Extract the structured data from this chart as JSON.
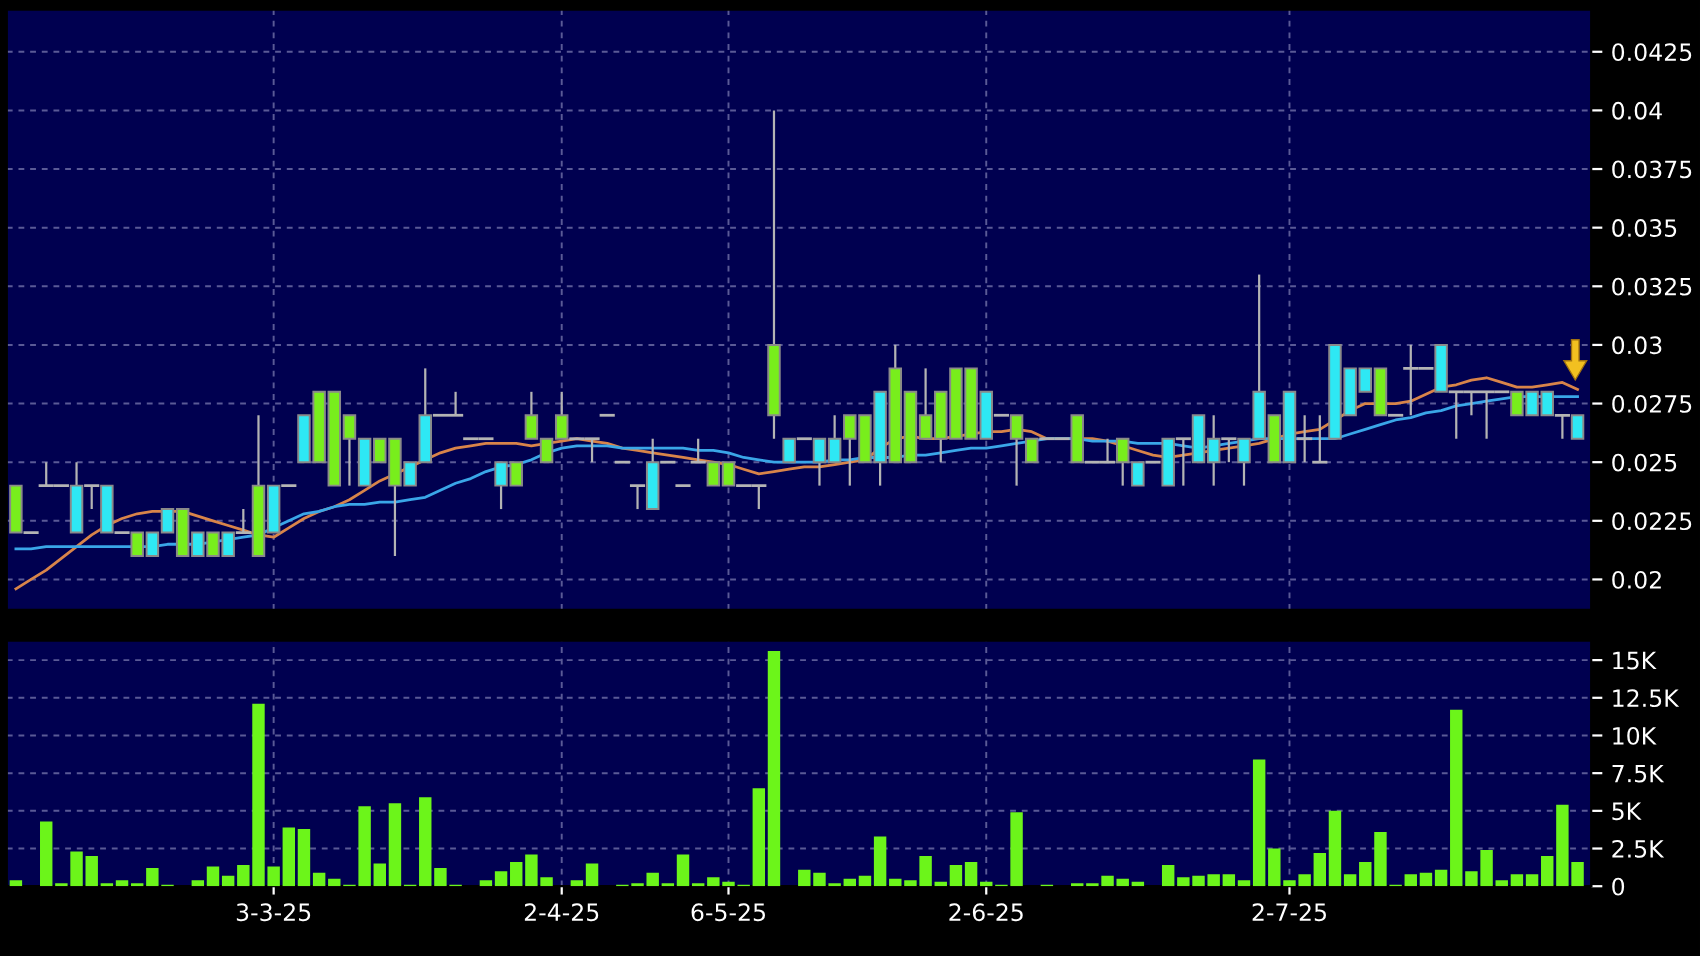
{
  "chart_data": [
    {
      "type": "candlestick",
      "ohlc": [
        [
          0.024,
          0.024,
          0.022,
          0.022
        ],
        [
          0.022,
          0.022,
          0.022,
          0.022
        ],
        [
          0.024,
          0.025,
          0.024,
          0.024
        ],
        [
          0.024,
          0.024,
          0.024,
          0.024
        ],
        [
          0.022,
          0.025,
          0.022,
          0.024
        ],
        [
          0.024,
          0.024,
          0.023,
          0.024
        ],
        [
          0.022,
          0.024,
          0.022,
          0.024
        ],
        [
          0.022,
          0.022,
          0.022,
          0.022
        ],
        [
          0.022,
          0.022,
          0.021,
          0.021
        ],
        [
          0.021,
          0.022,
          0.021,
          0.022
        ],
        [
          0.022,
          0.023,
          0.022,
          0.023
        ],
        [
          0.023,
          0.023,
          0.021,
          0.021
        ],
        [
          0.021,
          0.022,
          0.021,
          0.022
        ],
        [
          0.022,
          0.022,
          0.021,
          0.021
        ],
        [
          0.021,
          0.022,
          0.021,
          0.022
        ],
        [
          0.022,
          0.023,
          0.022,
          0.022
        ],
        [
          0.024,
          0.027,
          0.021,
          0.021
        ],
        [
          0.022,
          0.024,
          0.022,
          0.024
        ],
        [
          0.024,
          0.024,
          0.024,
          0.024
        ],
        [
          0.025,
          0.027,
          0.025,
          0.027
        ],
        [
          0.028,
          0.028,
          0.025,
          0.025
        ],
        [
          0.028,
          0.028,
          0.024,
          0.024
        ],
        [
          0.027,
          0.027,
          0.024,
          0.026
        ],
        [
          0.024,
          0.026,
          0.024,
          0.026
        ],
        [
          0.026,
          0.026,
          0.025,
          0.025
        ],
        [
          0.026,
          0.026,
          0.021,
          0.024
        ],
        [
          0.024,
          0.025,
          0.024,
          0.025
        ],
        [
          0.025,
          0.029,
          0.025,
          0.027
        ],
        [
          0.027,
          0.027,
          0.027,
          0.027
        ],
        [
          0.027,
          0.028,
          0.027,
          0.027
        ],
        [
          0.026,
          0.026,
          0.026,
          0.026
        ],
        [
          0.026,
          0.026,
          0.026,
          0.026
        ],
        [
          0.024,
          0.025,
          0.023,
          0.025
        ],
        [
          0.025,
          0.025,
          0.024,
          0.024
        ],
        [
          0.027,
          0.028,
          0.026,
          0.026
        ],
        [
          0.026,
          0.026,
          0.025,
          0.025
        ],
        [
          0.027,
          0.028,
          0.026,
          0.026
        ],
        [
          0.026,
          0.026,
          0.026,
          0.026
        ],
        [
          0.026,
          0.026,
          0.025,
          0.026
        ],
        [
          0.027,
          0.027,
          0.027,
          0.027
        ],
        [
          0.025,
          0.025,
          0.025,
          0.025
        ],
        [
          0.024,
          0.024,
          0.023,
          0.024
        ],
        [
          0.023,
          0.026,
          0.023,
          0.025
        ],
        [
          0.025,
          0.025,
          0.025,
          0.025
        ],
        [
          0.024,
          0.024,
          0.024,
          0.024
        ],
        [
          0.025,
          0.026,
          0.025,
          0.025
        ],
        [
          0.025,
          0.025,
          0.024,
          0.024
        ],
        [
          0.025,
          0.025,
          0.024,
          0.024
        ],
        [
          0.024,
          0.024,
          0.024,
          0.024
        ],
        [
          0.024,
          0.024,
          0.023,
          0.024
        ],
        [
          0.03,
          0.04,
          0.026,
          0.027
        ],
        [
          0.025,
          0.026,
          0.025,
          0.026
        ],
        [
          0.026,
          0.026,
          0.026,
          0.026
        ],
        [
          0.025,
          0.026,
          0.024,
          0.026
        ],
        [
          0.025,
          0.027,
          0.025,
          0.026
        ],
        [
          0.027,
          0.027,
          0.024,
          0.026
        ],
        [
          0.027,
          0.027,
          0.025,
          0.025
        ],
        [
          0.025,
          0.028,
          0.024,
          0.028
        ],
        [
          0.029,
          0.03,
          0.025,
          0.025
        ],
        [
          0.028,
          0.028,
          0.025,
          0.025
        ],
        [
          0.027,
          0.029,
          0.026,
          0.026
        ],
        [
          0.028,
          0.028,
          0.025,
          0.026
        ],
        [
          0.029,
          0.029,
          0.026,
          0.026
        ],
        [
          0.029,
          0.029,
          0.026,
          0.026
        ],
        [
          0.026,
          0.028,
          0.026,
          0.028
        ],
        [
          0.027,
          0.027,
          0.027,
          0.027
        ],
        [
          0.027,
          0.027,
          0.024,
          0.026
        ],
        [
          0.026,
          0.026,
          0.025,
          0.025
        ],
        [
          0.026,
          0.026,
          0.026,
          0.026
        ],
        [
          0.026,
          0.026,
          0.026,
          0.026
        ],
        [
          0.027,
          0.027,
          0.025,
          0.025
        ],
        [
          0.025,
          0.025,
          0.025,
          0.025
        ],
        [
          0.025,
          0.026,
          0.025,
          0.025
        ],
        [
          0.026,
          0.026,
          0.024,
          0.025
        ],
        [
          0.024,
          0.025,
          0.024,
          0.025
        ],
        [
          0.025,
          0.025,
          0.025,
          0.025
        ],
        [
          0.024,
          0.026,
          0.024,
          0.026
        ],
        [
          0.026,
          0.026,
          0.024,
          0.026
        ],
        [
          0.025,
          0.027,
          0.025,
          0.027
        ],
        [
          0.025,
          0.027,
          0.024,
          0.026
        ],
        [
          0.026,
          0.026,
          0.025,
          0.026
        ],
        [
          0.025,
          0.026,
          0.024,
          0.026
        ],
        [
          0.026,
          0.033,
          0.026,
          0.028
        ],
        [
          0.027,
          0.027,
          0.025,
          0.025
        ],
        [
          0.025,
          0.028,
          0.025,
          0.028
        ],
        [
          0.026,
          0.027,
          0.025,
          0.026
        ],
        [
          0.025,
          0.027,
          0.025,
          0.025
        ],
        [
          0.026,
          0.03,
          0.026,
          0.03
        ],
        [
          0.027,
          0.029,
          0.027,
          0.029
        ],
        [
          0.028,
          0.029,
          0.028,
          0.029
        ],
        [
          0.029,
          0.029,
          0.027,
          0.027
        ],
        [
          0.027,
          0.027,
          0.027,
          0.027
        ],
        [
          0.029,
          0.03,
          0.027,
          0.029
        ],
        [
          0.029,
          0.029,
          0.029,
          0.029
        ],
        [
          0.028,
          0.03,
          0.028,
          0.03
        ],
        [
          0.028,
          0.028,
          0.026,
          0.028
        ],
        [
          0.028,
          0.028,
          0.027,
          0.028
        ],
        [
          0.028,
          0.028,
          0.026,
          0.028
        ],
        [
          0.028,
          0.028,
          0.028,
          0.028
        ],
        [
          0.028,
          0.028,
          0.027,
          0.027
        ],
        [
          0.027,
          0.028,
          0.027,
          0.028
        ],
        [
          0.027,
          0.028,
          0.027,
          0.028
        ],
        [
          0.027,
          0.027,
          0.026,
          0.027
        ],
        [
          0.026,
          0.027,
          0.026,
          0.027
        ]
      ],
      "colors": [
        "#78ee1c",
        "#b4b4b4",
        "#b4b4b4",
        "#b4b4b4",
        "#2ee8f4",
        "#b4b4b4",
        "#2ee8f4",
        "#b4b4b4",
        "#78ee1c",
        "#2ee8f4",
        "#2ee8f4",
        "#78ee1c",
        "#2ee8f4",
        "#78ee1c",
        "#2ee8f4",
        "#b4b4b4",
        "#78ee1c",
        "#2ee8f4",
        "#b4b4b4",
        "#2ee8f4",
        "#78ee1c",
        "#78ee1c",
        "#78ee1c",
        "#2ee8f4",
        "#78ee1c",
        "#78ee1c",
        "#2ee8f4",
        "#2ee8f4",
        "#b4b4b4",
        "#b4b4b4",
        "#b4b4b4",
        "#b4b4b4",
        "#2ee8f4",
        "#78ee1c",
        "#78ee1c",
        "#78ee1c",
        "#78ee1c",
        "#b4b4b4",
        "#b4b4b4",
        "#b4b4b4",
        "#b4b4b4",
        "#b4b4b4",
        "#2ee8f4",
        "#b4b4b4",
        "#b4b4b4",
        "#b4b4b4",
        "#78ee1c",
        "#78ee1c",
        "#b4b4b4",
        "#b4b4b4",
        "#78ee1c",
        "#2ee8f4",
        "#b4b4b4",
        "#2ee8f4",
        "#2ee8f4",
        "#78ee1c",
        "#78ee1c",
        "#2ee8f4",
        "#78ee1c",
        "#78ee1c",
        "#78ee1c",
        "#78ee1c",
        "#78ee1c",
        "#78ee1c",
        "#2ee8f4",
        "#b4b4b4",
        "#78ee1c",
        "#78ee1c",
        "#b4b4b4",
        "#b4b4b4",
        "#78ee1c",
        "#b4b4b4",
        "#b4b4b4",
        "#78ee1c",
        "#2ee8f4",
        "#b4b4b4",
        "#2ee8f4",
        "#b4b4b4",
        "#2ee8f4",
        "#2ee8f4",
        "#b4b4b4",
        "#2ee8f4",
        "#2ee8f4",
        "#78ee1c",
        "#2ee8f4",
        "#b4b4b4",
        "#b4b4b4",
        "#2ee8f4",
        "#2ee8f4",
        "#2ee8f4",
        "#78ee1c",
        "#b4b4b4",
        "#b4b4b4",
        "#b4b4b4",
        "#2ee8f4",
        "#b4b4b4",
        "#b4b4b4",
        "#b4b4b4",
        "#b4b4b4",
        "#78ee1c",
        "#2ee8f4",
        "#2ee8f4",
        "#b4b4b4",
        "#2ee8f4"
      ],
      "series": [
        {
          "type": "line",
          "color": "#d8844a",
          "values": [
            0.0196,
            0.02,
            0.0204,
            0.0209,
            0.0214,
            0.0219,
            0.0223,
            0.0226,
            0.0228,
            0.0229,
            0.0229,
            0.0229,
            0.0227,
            0.0225,
            0.0223,
            0.0221,
            0.0219,
            0.0218,
            0.0222,
            0.0226,
            0.0229,
            0.0231,
            0.0234,
            0.0238,
            0.0242,
            0.0245,
            0.0248,
            0.0251,
            0.0254,
            0.0256,
            0.0257,
            0.0258,
            0.0258,
            0.0258,
            0.0257,
            0.0258,
            0.0259,
            0.026,
            0.0259,
            0.0258,
            0.0256,
            0.0255,
            0.0254,
            0.0253,
            0.0252,
            0.0251,
            0.025,
            0.0249,
            0.0247,
            0.0245,
            0.0246,
            0.0247,
            0.0248,
            0.0248,
            0.0249,
            0.025,
            0.0251,
            0.0256,
            0.026,
            0.0261,
            0.026,
            0.026,
            0.0261,
            0.0262,
            0.0263,
            0.0263,
            0.0264,
            0.0263,
            0.026,
            0.026,
            0.026,
            0.026,
            0.0259,
            0.0257,
            0.0255,
            0.0253,
            0.0252,
            0.0253,
            0.0254,
            0.0255,
            0.0256,
            0.0257,
            0.0258,
            0.026,
            0.0262,
            0.0263,
            0.0264,
            0.0268,
            0.0272,
            0.0275,
            0.0275,
            0.0275,
            0.0276,
            0.0279,
            0.0282,
            0.0283,
            0.0285,
            0.0286,
            0.0284,
            0.0282,
            0.0282,
            0.0283,
            0.0284,
            0.0281
          ]
        },
        {
          "type": "line",
          "color": "#3aa6e8",
          "values": [
            0.0213,
            0.0213,
            0.0214,
            0.0214,
            0.0214,
            0.0214,
            0.0214,
            0.0214,
            0.0214,
            0.0214,
            0.0215,
            0.0215,
            0.0215,
            0.0216,
            0.0217,
            0.0218,
            0.0219,
            0.0222,
            0.0225,
            0.0228,
            0.0229,
            0.0231,
            0.0232,
            0.0232,
            0.0233,
            0.0233,
            0.0234,
            0.0235,
            0.0238,
            0.0241,
            0.0243,
            0.0246,
            0.0248,
            0.0249,
            0.0251,
            0.0254,
            0.0256,
            0.0257,
            0.0257,
            0.0257,
            0.0256,
            0.0256,
            0.0256,
            0.0256,
            0.0256,
            0.0255,
            0.0255,
            0.0254,
            0.0252,
            0.0251,
            0.025,
            0.025,
            0.025,
            0.025,
            0.0251,
            0.0251,
            0.0252,
            0.0252,
            0.0252,
            0.0253,
            0.0253,
            0.0254,
            0.0255,
            0.0256,
            0.0256,
            0.0257,
            0.0258,
            0.0259,
            0.026,
            null,
            0.026,
            0.0259,
            0.0259,
            0.0259,
            0.0258,
            0.0258,
            0.0258,
            0.0257,
            0.0256,
            0.0257,
            0.0258,
            0.0259,
            0.026,
            0.026,
            0.026,
            0.026,
            0.026,
            0.026,
            0.0262,
            0.0264,
            0.0266,
            0.0268,
            0.0269,
            0.0271,
            0.0272,
            0.0274,
            0.0275,
            0.0276,
            0.0277,
            0.0278,
            0.0278,
            0.0278,
            0.0278,
            0.0278
          ]
        }
      ],
      "ylim": [
        0.0187,
        0.0443
      ],
      "yticks": [
        0.02,
        0.0225,
        0.025,
        0.0275,
        0.03,
        0.0325,
        0.035,
        0.0375,
        0.04,
        0.0425
      ],
      "grid": true,
      "tick_labels": "y"
    },
    {
      "type": "bar",
      "categories": [
        null,
        null,
        null,
        null,
        null,
        null,
        null,
        null,
        null,
        null,
        null,
        null,
        null,
        null,
        null,
        null,
        null,
        "3-3-25",
        null,
        null,
        null,
        null,
        null,
        null,
        null,
        null,
        null,
        null,
        null,
        null,
        null,
        null,
        null,
        null,
        null,
        null,
        "2-4-25",
        null,
        null,
        null,
        null,
        null,
        null,
        null,
        null,
        null,
        null,
        "6-5-25",
        null,
        null,
        null,
        null,
        null,
        null,
        null,
        null,
        null,
        null,
        null,
        null,
        null,
        null,
        null,
        null,
        "2-6-25",
        null,
        null,
        null,
        null,
        null,
        null,
        null,
        null,
        null,
        null,
        null,
        null,
        null,
        null,
        null,
        null,
        null,
        null,
        null,
        "2-7-25",
        null,
        null,
        null,
        null,
        null,
        null,
        null,
        null,
        null,
        null,
        null,
        null,
        null,
        null,
        null,
        null,
        null,
        null,
        null
      ],
      "values": [
        0.4,
        0,
        4.3,
        0.2,
        2.3,
        2.0,
        0.2,
        0.4,
        0.2,
        1.2,
        0.1,
        0,
        0.4,
        1.3,
        0.7,
        1.4,
        12.1,
        1.3,
        3.9,
        3.8,
        0.9,
        0.5,
        0.1,
        5.3,
        1.5,
        5.5,
        0.1,
        5.9,
        1.2,
        0.1,
        0,
        0.4,
        1.0,
        1.6,
        2.1,
        0.6,
        0,
        0.4,
        1.5,
        0,
        0.1,
        0.2,
        0.9,
        0.2,
        2.1,
        0.2,
        0.6,
        0.3,
        0.1,
        6.5,
        15.6,
        0,
        1.1,
        0.9,
        0.2,
        0.5,
        0.7,
        3.3,
        0.5,
        0.4,
        2.0,
        0.3,
        1.4,
        1.6,
        0.3,
        0.1,
        4.9,
        0,
        0.1,
        0,
        0.2,
        0.2,
        0.7,
        0.5,
        0.3,
        0,
        1.4,
        0.6,
        0.7,
        0.8,
        0.8,
        0.4,
        8.4,
        2.5,
        0.4,
        0.8,
        2.2,
        5.0,
        0.8,
        1.6,
        3.6,
        0.1,
        0.8,
        0.9,
        1.1,
        11.7,
        1.0,
        2.4,
        0.4,
        0.8,
        0.8,
        2.0,
        5.4,
        1.6
      ],
      "color": "#6cf51a",
      "ylim": [
        0,
        16.3
      ],
      "yticks": [
        {
          "value": 0,
          "label": "0"
        },
        {
          "value": 2.5,
          "label": "2.5K"
        },
        {
          "value": 5,
          "label": "5K"
        },
        {
          "value": 7.5,
          "label": "7.5K"
        },
        {
          "value": 10,
          "label": "10K"
        },
        {
          "value": 12.5,
          "label": "12.5K"
        },
        {
          "value": 15,
          "label": "15K"
        }
      ],
      "grid": true
    }
  ]
}
